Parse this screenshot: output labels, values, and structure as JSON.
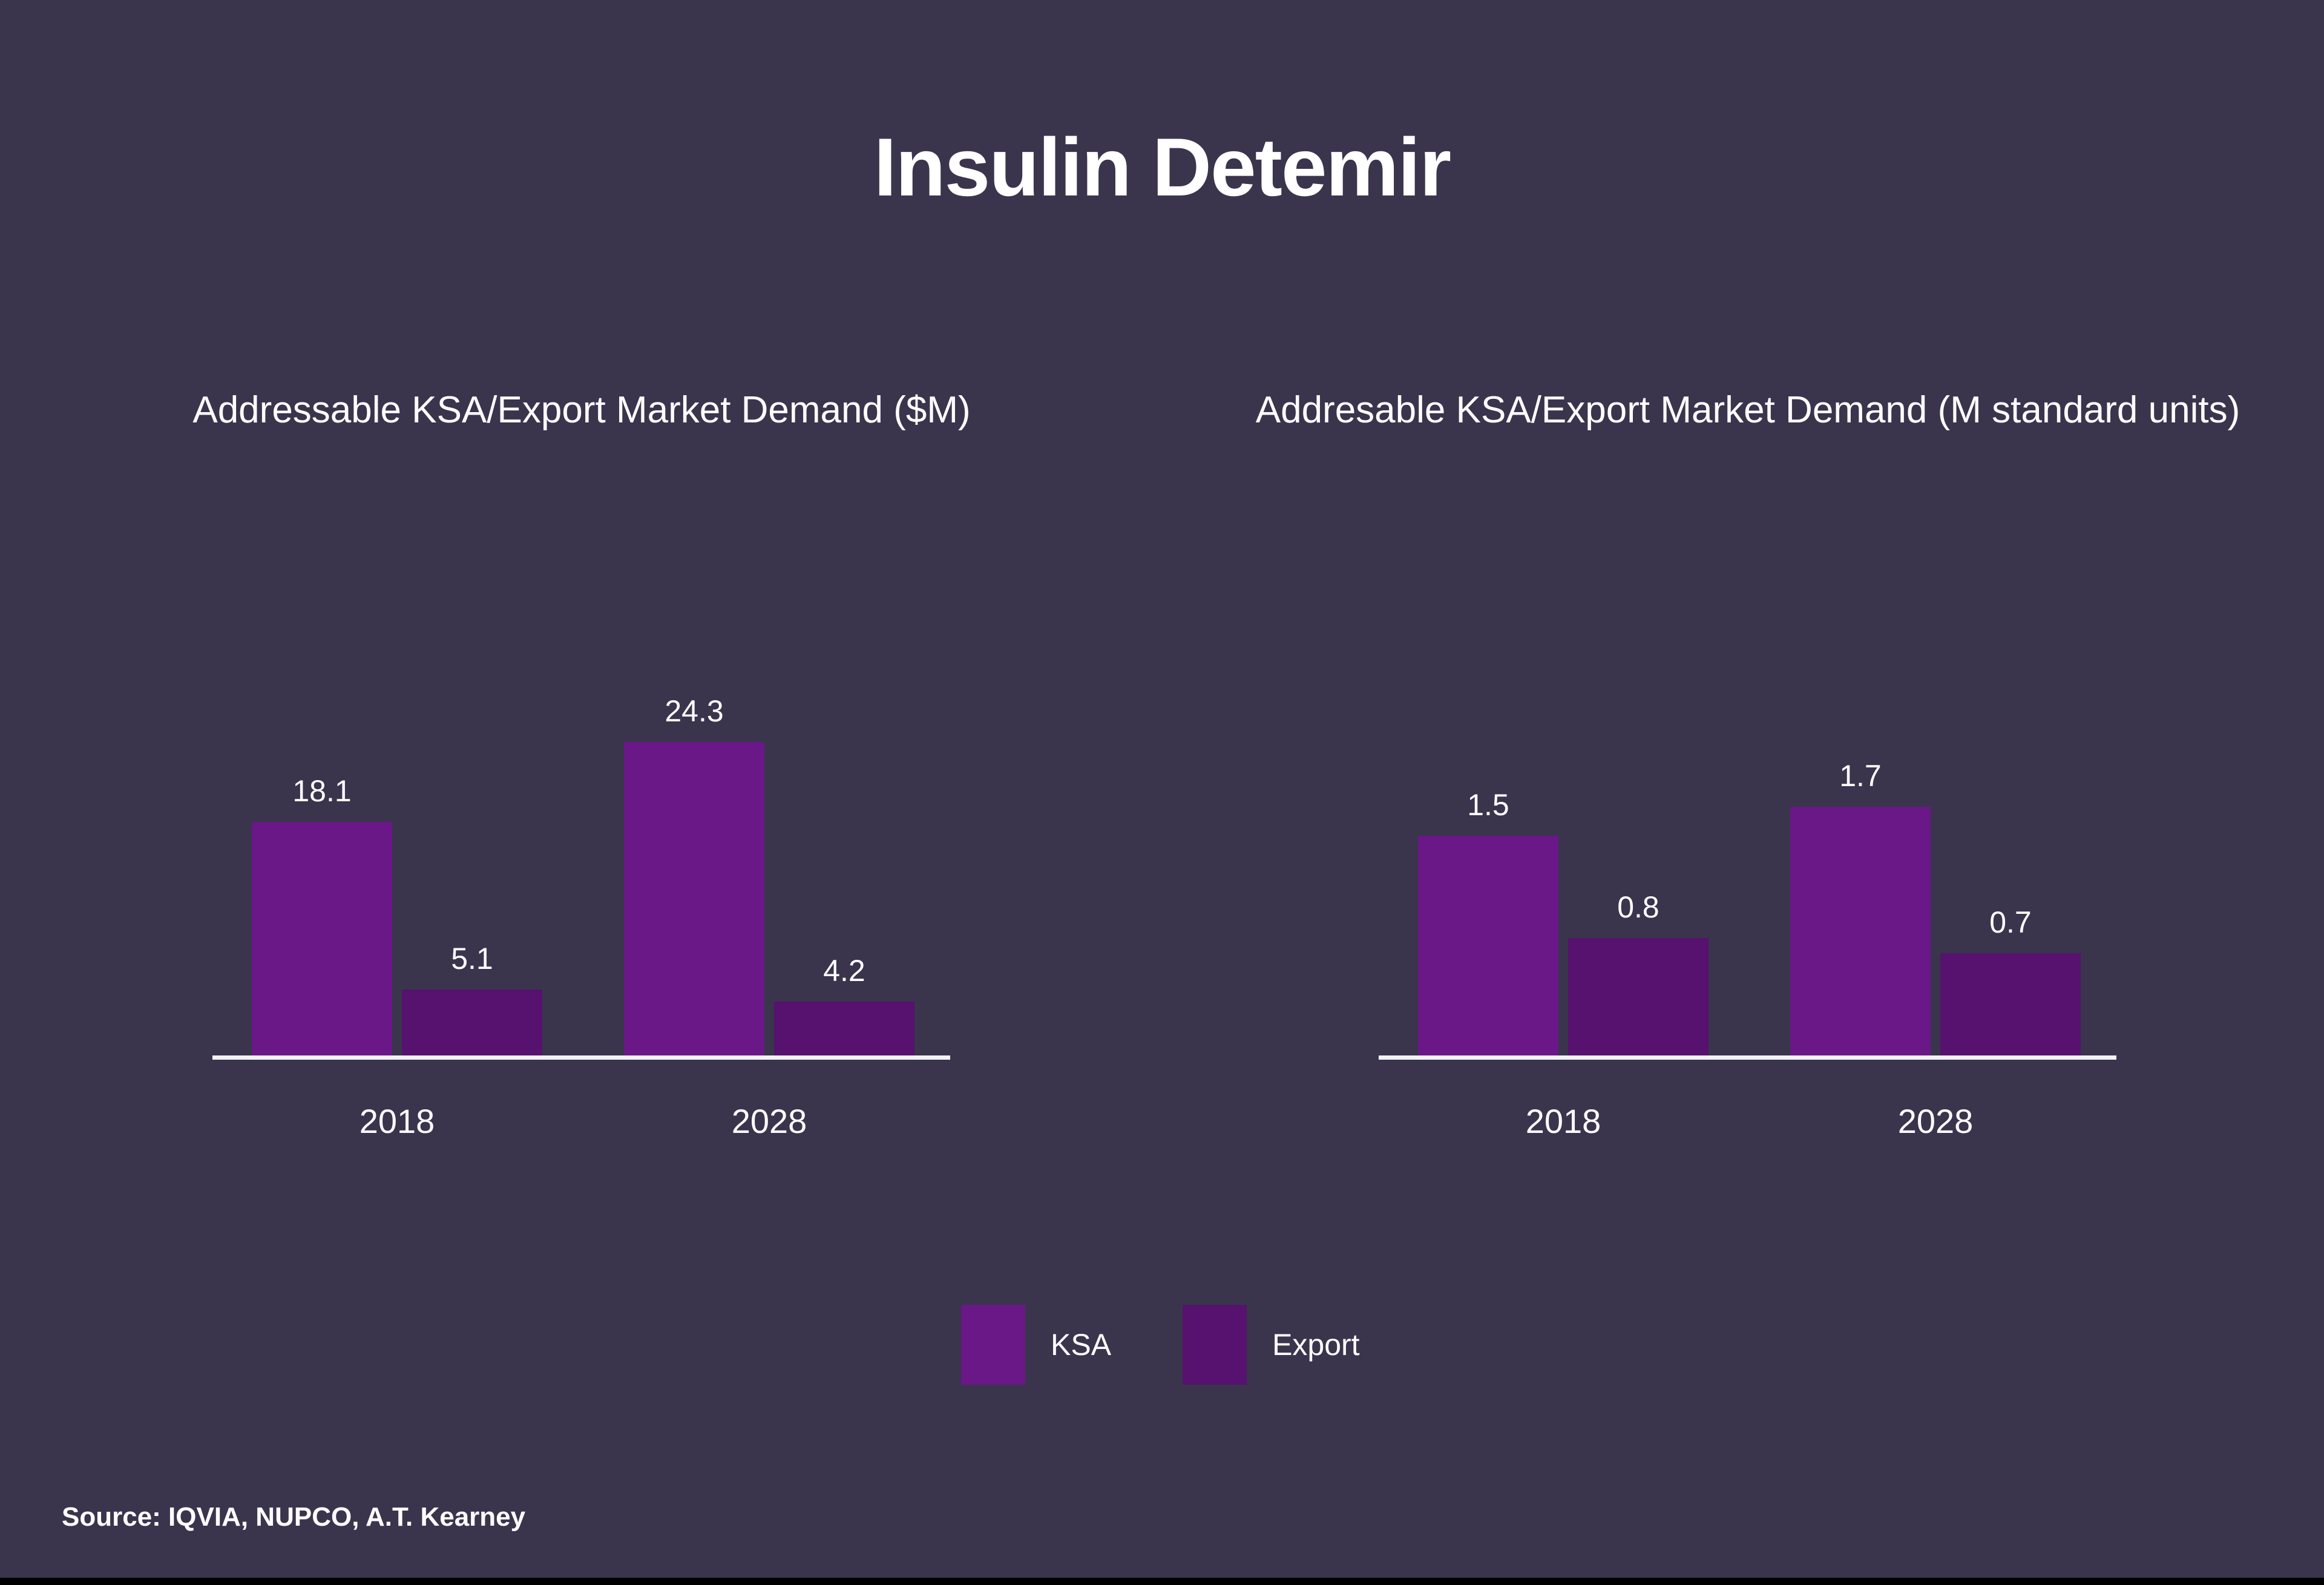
{
  "title": "Insulin Detemir",
  "source": "Source: IQVIA, NUPCO, A.T. Kearney",
  "colors": {
    "background": "#3a354d",
    "ksa": "#6a1788",
    "export": "#56126e",
    "axis": "#f2f2f4",
    "text": "#ffffff",
    "bottom_strip": "#000000"
  },
  "legend": {
    "items": [
      {
        "label": "KSA",
        "color_key": "ksa"
      },
      {
        "label": "Export",
        "color_key": "export"
      }
    ],
    "position": "bottom-center"
  },
  "chart_data": [
    {
      "type": "bar",
      "title": "Addressable KSA/Export Market Demand ($M)",
      "categories": [
        "2018",
        "2028"
      ],
      "series": [
        {
          "name": "KSA",
          "values": [
            18.1,
            24.3
          ]
        },
        {
          "name": "Export",
          "values": [
            5.1,
            4.2
          ]
        }
      ],
      "ylim": [
        0,
        26
      ],
      "grid": false,
      "axis_labels_shown": false,
      "data_labels": true
    },
    {
      "type": "bar",
      "title": "Addresable KSA/Export Market Demand (M standard units)",
      "categories": [
        "2018",
        "2028"
      ],
      "series": [
        {
          "name": "KSA",
          "values": [
            1.5,
            1.7
          ]
        },
        {
          "name": "Export",
          "values": [
            0.8,
            0.7
          ]
        }
      ],
      "ylim": [
        0,
        1.9
      ],
      "grid": false,
      "axis_labels_shown": false,
      "data_labels": true
    }
  ]
}
